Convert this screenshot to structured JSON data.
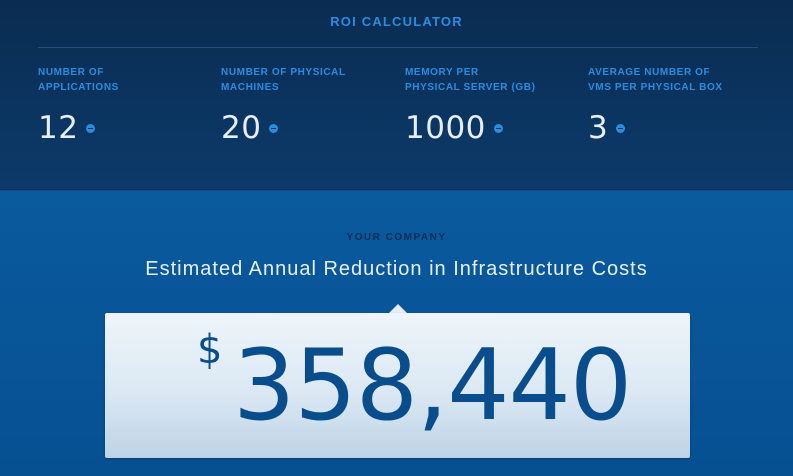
{
  "header": {
    "title": "ROI CALCULATOR"
  },
  "fields": [
    {
      "label_line1": "NUMBER OF",
      "label_line2": "APPLICATIONS",
      "value": "12"
    },
    {
      "label_line1": "NUMBER OF PHYSICAL",
      "label_line2": "MACHINES",
      "value": "20"
    },
    {
      "label_line1": "MEMORY PER",
      "label_line2": "PHYSICAL SERVER (GB)",
      "value": "1000"
    },
    {
      "label_line1": "AVERAGE NUMBER OF",
      "label_line2": "VMS PER PHYSICAL BOX",
      "value": "3"
    }
  ],
  "result": {
    "company_label": "YOUR COMPANY",
    "headline": "Estimated Annual Reduction in Infrastructure Costs",
    "currency": "$",
    "amount": "358,440"
  },
  "colors": {
    "accent": "#2c8ce0",
    "top_bg": "#0c3a6a",
    "bottom_bg": "#065091",
    "amount_text": "#0a4d8c"
  }
}
